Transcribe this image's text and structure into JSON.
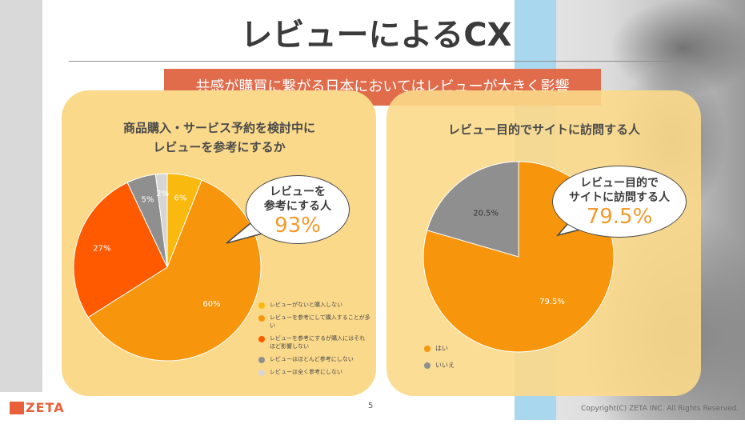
{
  "slide": {
    "title": "レビューによるCX",
    "banner": "共感が購買に繋がる日本においてはレビューが大きく影響",
    "page_number": "5",
    "copyright": "Copyright(C) ZETA INC. All Rights Reserved.",
    "logo": "ZETA"
  },
  "colors": {
    "panel": "#fbd98a",
    "banner": "#e06c4c",
    "orange": "#f7960d",
    "dark_orange": "#ff5a00",
    "yellow": "#f9b90e",
    "gray": "#8f8f8f",
    "light_gray": "#d6d6d6",
    "accent_value": "#f39a2a"
  },
  "left_panel": {
    "title_line1": "商品購入・サービス予約を検討中に",
    "title_line2": "レビューを参考にするか",
    "bubble_line1": "レビューを",
    "bubble_line2": "参考にする人",
    "bubble_value": "93%"
  },
  "right_panel": {
    "title": "レビュー目的でサイトに訪問する人",
    "bubble_line1": "レビュー目的で",
    "bubble_line2": "サイトに訪問する人",
    "bubble_value": "79.5%"
  },
  "chart_data": [
    {
      "type": "pie",
      "title": "商品購入・サービス予約を検討中に レビューを参考にするか",
      "slices": [
        {
          "name": "レビューがないと購入しない",
          "value": 6,
          "label": "6%",
          "color": "#f9b90e"
        },
        {
          "name": "レビューを参考にして購入することが多い",
          "value": 60,
          "label": "60%",
          "color": "#f7960d"
        },
        {
          "name": "レビューを参考にするが購入にはそれほど影響しない",
          "value": 27,
          "label": "27%",
          "color": "#ff5a00"
        },
        {
          "name": "レビューはほとんど参考にしない",
          "value": 5,
          "label": "5%",
          "color": "#8f8f8f"
        },
        {
          "name": "レビューは全く参考にしない",
          "value": 2,
          "label": "2%",
          "color": "#d6d6d6"
        }
      ],
      "legend_placement": "bottom-right"
    },
    {
      "type": "pie",
      "title": "レビュー目的でサイトに訪問する人",
      "slices": [
        {
          "name": "はい",
          "value": 79.5,
          "label": "79.5%",
          "color": "#f7960d"
        },
        {
          "name": "いいえ",
          "value": 20.5,
          "label": "20.5%",
          "color": "#8f8f8f"
        }
      ],
      "legend_placement": "bottom-left"
    }
  ]
}
